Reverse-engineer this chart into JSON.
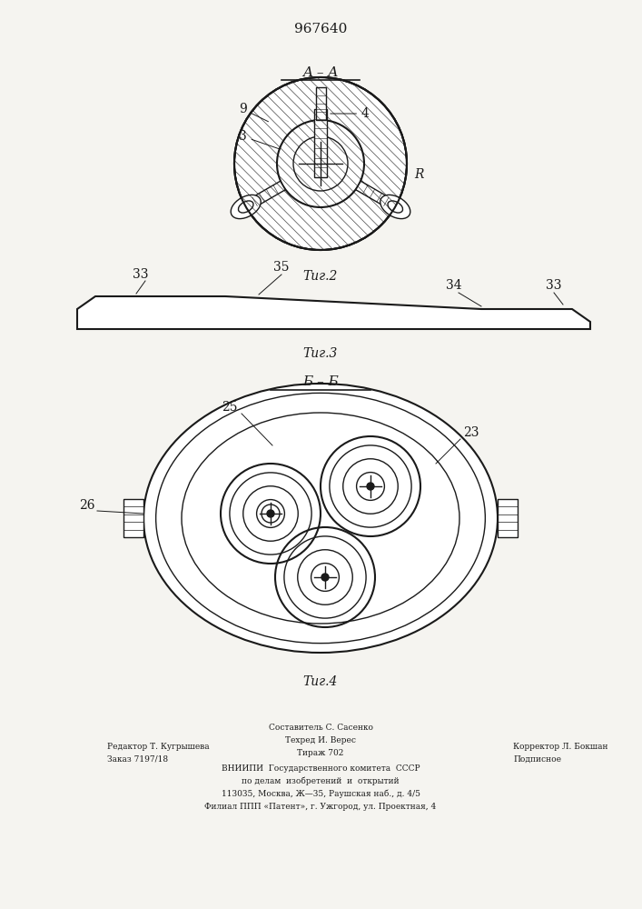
{
  "title": "967640",
  "bg_color": "#f5f4f0",
  "line_color": "#1a1a1a",
  "fig2_label": "Τиг.2",
  "fig3_label": "Τиг.3",
  "fig4_label": "Τиг.4",
  "section_aa": "A – A",
  "section_bb": "Б – Б"
}
